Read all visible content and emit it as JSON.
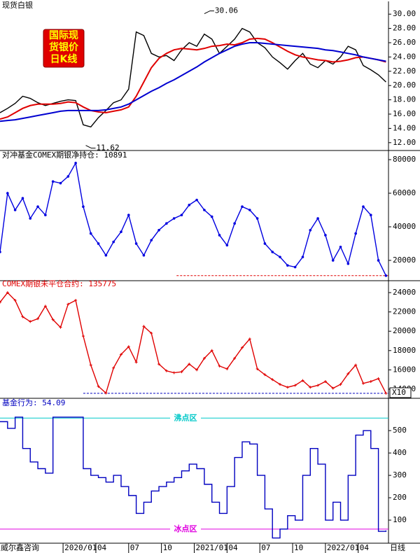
{
  "chart_data": [
    {
      "type": "line",
      "title": "现货白银",
      "title_color": "#000000",
      "xlim": [
        0,
        154
      ],
      "ylim": [
        11,
        31
      ],
      "yticks": [
        {
          "value": 12,
          "label": "12.00"
        },
        {
          "value": 14,
          "label": "14.00"
        },
        {
          "value": 16,
          "label": "16.00"
        },
        {
          "value": 18,
          "label": "18.00"
        },
        {
          "value": 20,
          "label": "20.00"
        },
        {
          "value": 22,
          "label": "22.00"
        },
        {
          "value": 24,
          "label": "24.00"
        },
        {
          "value": 26,
          "label": "26.00"
        },
        {
          "value": 28,
          "label": "28.00"
        },
        {
          "value": 30,
          "label": "30.00"
        }
      ],
      "badge": [
        "国际现",
        "货银价",
        "日K线"
      ],
      "annotations": [
        {
          "x": 81,
          "y": 30.06
        },
        {
          "x": 34,
          "y": 11.62
        }
      ],
      "x": [
        0,
        3,
        6,
        9,
        12,
        15,
        18,
        21,
        24,
        27,
        30,
        33,
        36,
        39,
        42,
        45,
        48,
        51,
        54,
        57,
        60,
        63,
        66,
        69,
        72,
        75,
        78,
        81,
        84,
        87,
        90,
        93,
        96,
        99,
        102,
        105,
        108,
        111,
        114,
        117,
        120,
        123,
        126,
        129,
        132,
        135,
        138,
        141,
        144,
        147,
        150,
        153
      ],
      "series": [
        {
          "color": "#000000",
          "values": [
            16.2,
            16.8,
            17.5,
            18.5,
            18.2,
            17.6,
            17.2,
            17.5,
            17.8,
            18.0,
            17.9,
            14.5,
            14.2,
            15.5,
            16.5,
            17.6,
            18.0,
            19.5,
            27.5,
            27.0,
            24.5,
            24.0,
            24.2,
            23.5,
            25.0,
            26.0,
            25.5,
            27.2,
            26.5,
            24.5,
            25.5,
            26.5,
            28.0,
            27.5,
            26.0,
            25.3,
            24.0,
            23.2,
            22.3,
            23.5,
            24.5,
            23.0,
            22.5,
            23.5,
            23.0,
            24.0,
            25.5,
            25.0,
            22.8,
            22.2,
            21.5,
            20.5
          ]
        },
        {
          "color": "#e00000",
          "values": [
            15.3,
            15.6,
            16.2,
            16.8,
            17.2,
            17.4,
            17.4,
            17.4,
            17.5,
            17.7,
            17.6,
            17.0,
            16.5,
            16.3,
            16.2,
            16.4,
            16.6,
            17.0,
            18.5,
            20.5,
            22.5,
            23.8,
            24.5,
            25.0,
            25.2,
            25.1,
            25.0,
            25.2,
            25.5,
            25.6,
            25.8,
            25.7,
            26.0,
            26.5,
            26.6,
            26.5,
            26.0,
            25.4,
            24.8,
            24.3,
            24.0,
            23.8,
            23.6,
            23.5,
            23.3,
            23.4,
            23.6,
            23.9,
            24.0,
            23.8,
            23.6,
            23.3
          ]
        },
        {
          "color": "#0000d0",
          "values": [
            15.0,
            15.1,
            15.2,
            15.4,
            15.6,
            15.8,
            16.0,
            16.2,
            16.4,
            16.5,
            16.5,
            16.5,
            16.5,
            16.5,
            16.6,
            16.8,
            17.0,
            17.4,
            18.0,
            18.6,
            19.2,
            19.7,
            20.3,
            20.8,
            21.4,
            22.0,
            22.6,
            23.3,
            23.9,
            24.5,
            25.0,
            25.5,
            25.8,
            26.0,
            26.0,
            25.9,
            25.8,
            25.7,
            25.6,
            25.5,
            25.4,
            25.3,
            25.2,
            25.0,
            24.9,
            24.7,
            24.5,
            24.3,
            24.0,
            23.8,
            23.6,
            23.4
          ]
        }
      ]
    },
    {
      "type": "line",
      "title": "对冲基金COMEX期银净持仓: 10891",
      "title_color": "#000000",
      "xlim": [
        0,
        154
      ],
      "ylim": [
        8300,
        84200
      ],
      "yticks": [
        20000,
        40000,
        60000,
        80000
      ],
      "ref_line": {
        "value": 10891,
        "from_x": 70,
        "color": "#e00000"
      },
      "x": [
        0,
        3,
        6,
        9,
        12,
        15,
        18,
        21,
        24,
        27,
        30,
        33,
        36,
        39,
        42,
        45,
        48,
        51,
        54,
        57,
        60,
        63,
        66,
        69,
        72,
        75,
        78,
        81,
        84,
        87,
        90,
        93,
        96,
        99,
        102,
        105,
        108,
        111,
        114,
        117,
        120,
        123,
        126,
        129,
        132,
        135,
        138,
        141,
        144,
        147,
        150,
        153
      ],
      "series": [
        {
          "color": "#0000e0",
          "marker": "dot",
          "values": [
            25000,
            60000,
            50000,
            57000,
            45000,
            52000,
            47000,
            67000,
            66000,
            70000,
            78000,
            52000,
            36000,
            30000,
            23000,
            31000,
            37000,
            47000,
            30000,
            23000,
            32000,
            38000,
            42000,
            45000,
            47000,
            53000,
            56000,
            50000,
            46000,
            35000,
            29000,
            42000,
            52000,
            50000,
            45000,
            30000,
            25000,
            22000,
            17000,
            16000,
            22000,
            38000,
            45000,
            35000,
            20000,
            28000,
            18000,
            36000,
            52000,
            47000,
            20000,
            10891
          ]
        }
      ]
    },
    {
      "type": "line",
      "title": "COMEX期银未平仓合约: 135775",
      "title_color": "#e00000",
      "xlim": [
        0,
        154
      ],
      "ylim": [
        13130,
        25160
      ],
      "yticks": [
        14000,
        16000,
        18000,
        20000,
        22000,
        24000
      ],
      "scale_note": "X10",
      "ref_line": {
        "value": 13578,
        "from_x": 33,
        "color": "#0000c0"
      },
      "x": [
        0,
        3,
        6,
        9,
        12,
        15,
        18,
        21,
        24,
        27,
        30,
        33,
        36,
        39,
        42,
        45,
        48,
        51,
        54,
        57,
        60,
        63,
        66,
        69,
        72,
        75,
        78,
        81,
        84,
        87,
        90,
        93,
        96,
        99,
        102,
        105,
        108,
        111,
        114,
        117,
        120,
        123,
        126,
        129,
        132,
        135,
        138,
        141,
        144,
        147,
        150,
        153
      ],
      "series": [
        {
          "color": "#e00000",
          "marker": "plus",
          "values": [
            23000,
            24000,
            23200,
            21500,
            21000,
            21300,
            22600,
            21200,
            20400,
            22800,
            23200,
            19500,
            16500,
            14300,
            13600,
            16200,
            17600,
            18400,
            16800,
            20500,
            19800,
            16600,
            15900,
            15700,
            15800,
            16600,
            16000,
            17200,
            18000,
            16400,
            16100,
            17200,
            18300,
            19200,
            16100,
            15500,
            15000,
            14500,
            14200,
            14400,
            14900,
            14200,
            14400,
            14800,
            14100,
            14500,
            15600,
            16500,
            14600,
            14800,
            15100,
            13578
          ]
        }
      ]
    },
    {
      "type": "step",
      "title": "基金行为: 54.09",
      "title_color": "#0000c0",
      "xlim": [
        0,
        154
      ],
      "ylim": [
        0,
        635
      ],
      "yticks": [
        100,
        200,
        300,
        400,
        500
      ],
      "zones": [
        {
          "name": "沸点区",
          "value": 556,
          "color": "#00c8c8"
        },
        {
          "name": "冰点区",
          "value": 60,
          "color": "#e000e0"
        }
      ],
      "xticks": [
        {
          "value": 25,
          "label": "2020/01"
        },
        {
          "value": 38,
          "label": "04"
        },
        {
          "value": 51,
          "label": "07"
        },
        {
          "value": 64,
          "label": "10"
        },
        {
          "value": 77,
          "label": "2021/01"
        },
        {
          "value": 90,
          "label": "04"
        },
        {
          "value": 103,
          "label": "07"
        },
        {
          "value": 116,
          "label": "10"
        },
        {
          "value": 129,
          "label": "2022/01"
        },
        {
          "value": 142,
          "label": "04"
        }
      ],
      "source": "威尔鑫咨询",
      "period": "日线",
      "x": [
        0,
        3,
        6,
        9,
        12,
        15,
        18,
        21,
        24,
        27,
        30,
        33,
        36,
        39,
        42,
        45,
        48,
        51,
        54,
        57,
        60,
        63,
        66,
        69,
        72,
        75,
        78,
        81,
        84,
        87,
        90,
        93,
        96,
        99,
        102,
        105,
        108,
        111,
        114,
        117,
        120,
        123,
        126,
        129,
        132,
        135,
        138,
        141,
        144,
        147,
        150,
        153
      ],
      "series": [
        {
          "color": "#0000c0",
          "values": [
            540,
            510,
            560,
            420,
            360,
            330,
            310,
            560,
            560,
            560,
            560,
            330,
            300,
            290,
            270,
            300,
            250,
            210,
            130,
            180,
            230,
            250,
            270,
            290,
            320,
            350,
            330,
            260,
            180,
            130,
            250,
            380,
            450,
            440,
            300,
            150,
            20,
            60,
            120,
            100,
            300,
            420,
            350,
            100,
            180,
            100,
            300,
            480,
            500,
            420,
            50,
            54.09
          ]
        }
      ]
    }
  ]
}
